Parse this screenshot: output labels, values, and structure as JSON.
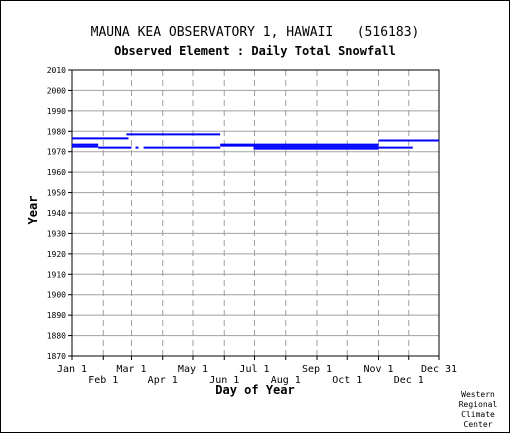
{
  "chart_data": {
    "type": "line",
    "title": "MAUNA KEA OBSERVATORY 1, HAWAII   (516183)",
    "subtitle": "Observed Element : Daily Total Snowfall",
    "xlabel": "Day of Year",
    "ylabel": "Year",
    "ylim": [
      1870,
      2010
    ],
    "xlim": [
      1,
      365
    ],
    "y_ticks": [
      2010,
      2000,
      1990,
      1980,
      1970,
      1960,
      1950,
      1940,
      1930,
      1920,
      1910,
      1900,
      1890,
      1880,
      1870
    ],
    "x_ticks_upper": [
      {
        "label": "Jan 1",
        "day": 1
      },
      {
        "label": "Mar 1",
        "day": 60
      },
      {
        "label": "May 1",
        "day": 121
      },
      {
        "label": "Jul 1",
        "day": 182
      },
      {
        "label": "Sep 1",
        "day": 244
      },
      {
        "label": "Nov 1",
        "day": 305
      },
      {
        "label": "Dec 31",
        "day": 365
      }
    ],
    "x_ticks_lower": [
      {
        "label": "Feb 1",
        "day": 32
      },
      {
        "label": "Apr 1",
        "day": 91
      },
      {
        "label": "Jun 1",
        "day": 152
      },
      {
        "label": "Aug 1",
        "day": 213
      },
      {
        "label": "Oct 1",
        "day": 274
      },
      {
        "label": "Dec 1",
        "day": 335
      }
    ],
    "grid": true,
    "series_color": "#0000ff",
    "segments": [
      {
        "year": 1976.5,
        "start_day": 1,
        "end_day": 57
      },
      {
        "year": 1973.5,
        "start_day": 1,
        "end_day": 27
      },
      {
        "year": 1972.5,
        "start_day": 1,
        "end_day": 27
      },
      {
        "year": 1972,
        "start_day": 27,
        "end_day": 60
      },
      {
        "year": 1972,
        "start_day": 64,
        "end_day": 67
      },
      {
        "year": 1972,
        "start_day": 72,
        "end_day": 148
      },
      {
        "year": 1978.5,
        "start_day": 55,
        "end_day": 148
      },
      {
        "year": 1973,
        "start_day": 148,
        "end_day": 181
      },
      {
        "year": 1973.5,
        "start_day": 148,
        "end_day": 305
      },
      {
        "year": 1972.5,
        "start_day": 181,
        "end_day": 305
      },
      {
        "year": 1971.5,
        "start_day": 181,
        "end_day": 305
      },
      {
        "year": 1975.5,
        "start_day": 305,
        "end_day": 365
      },
      {
        "year": 1972,
        "start_day": 305,
        "end_day": 339
      }
    ]
  },
  "credit": [
    "Western",
    "Regional",
    "Climate",
    "Center"
  ]
}
